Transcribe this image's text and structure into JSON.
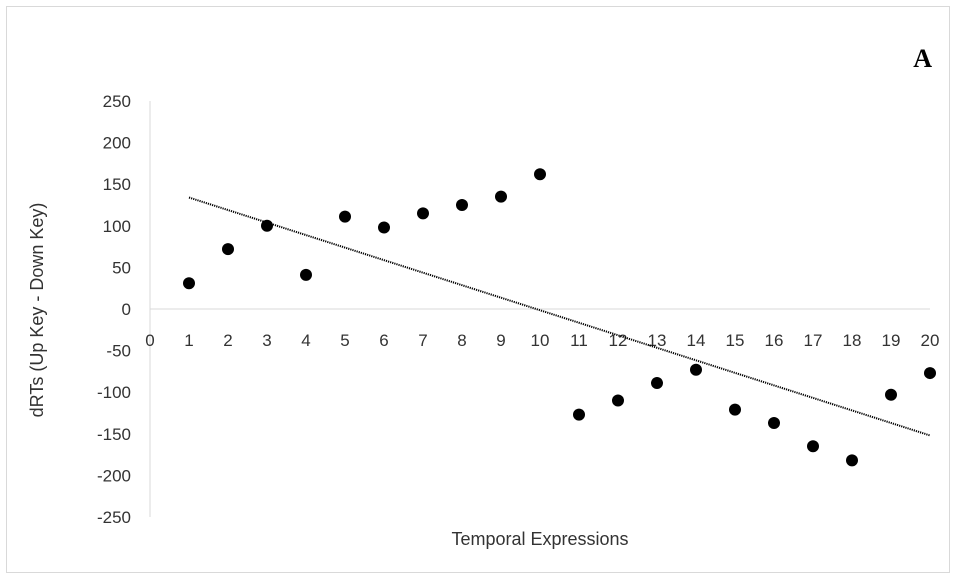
{
  "chart_data": {
    "type": "scatter",
    "panel_label": "A",
    "xlabel": "Temporal Expressions",
    "ylabel": "dRTs (Up Key - Down Key)",
    "xlim": [
      0,
      20
    ],
    "ylim": [
      -250,
      250
    ],
    "x_ticks": [
      0,
      1,
      2,
      3,
      4,
      5,
      6,
      7,
      8,
      9,
      10,
      11,
      12,
      13,
      14,
      15,
      16,
      17,
      18,
      19,
      20
    ],
    "y_ticks": [
      250,
      200,
      150,
      100,
      50,
      0,
      -50,
      -100,
      -150,
      -200,
      -250
    ],
    "grid": false,
    "series": [
      {
        "points": [
          {
            "x": 1,
            "y": 31
          },
          {
            "x": 2,
            "y": 72
          },
          {
            "x": 3,
            "y": 100
          },
          {
            "x": 4,
            "y": 41
          },
          {
            "x": 5,
            "y": 111
          },
          {
            "x": 6,
            "y": 98
          },
          {
            "x": 7,
            "y": 115
          },
          {
            "x": 8,
            "y": 125
          },
          {
            "x": 9,
            "y": 135
          },
          {
            "x": 10,
            "y": 162
          },
          {
            "x": 11,
            "y": -127
          },
          {
            "x": 12,
            "y": -110
          },
          {
            "x": 13,
            "y": -89
          },
          {
            "x": 14,
            "y": -73
          },
          {
            "x": 15,
            "y": -121
          },
          {
            "x": 16,
            "y": -137
          },
          {
            "x": 17,
            "y": -165
          },
          {
            "x": 18,
            "y": -182
          },
          {
            "x": 19,
            "y": -103
          },
          {
            "x": 20,
            "y": -77
          }
        ],
        "color": "#000000"
      }
    ],
    "trendline": {
      "style": "dotted",
      "color": "#000000",
      "x_start": 1,
      "y_start": 134,
      "x_end": 20,
      "y_end": -152
    }
  }
}
